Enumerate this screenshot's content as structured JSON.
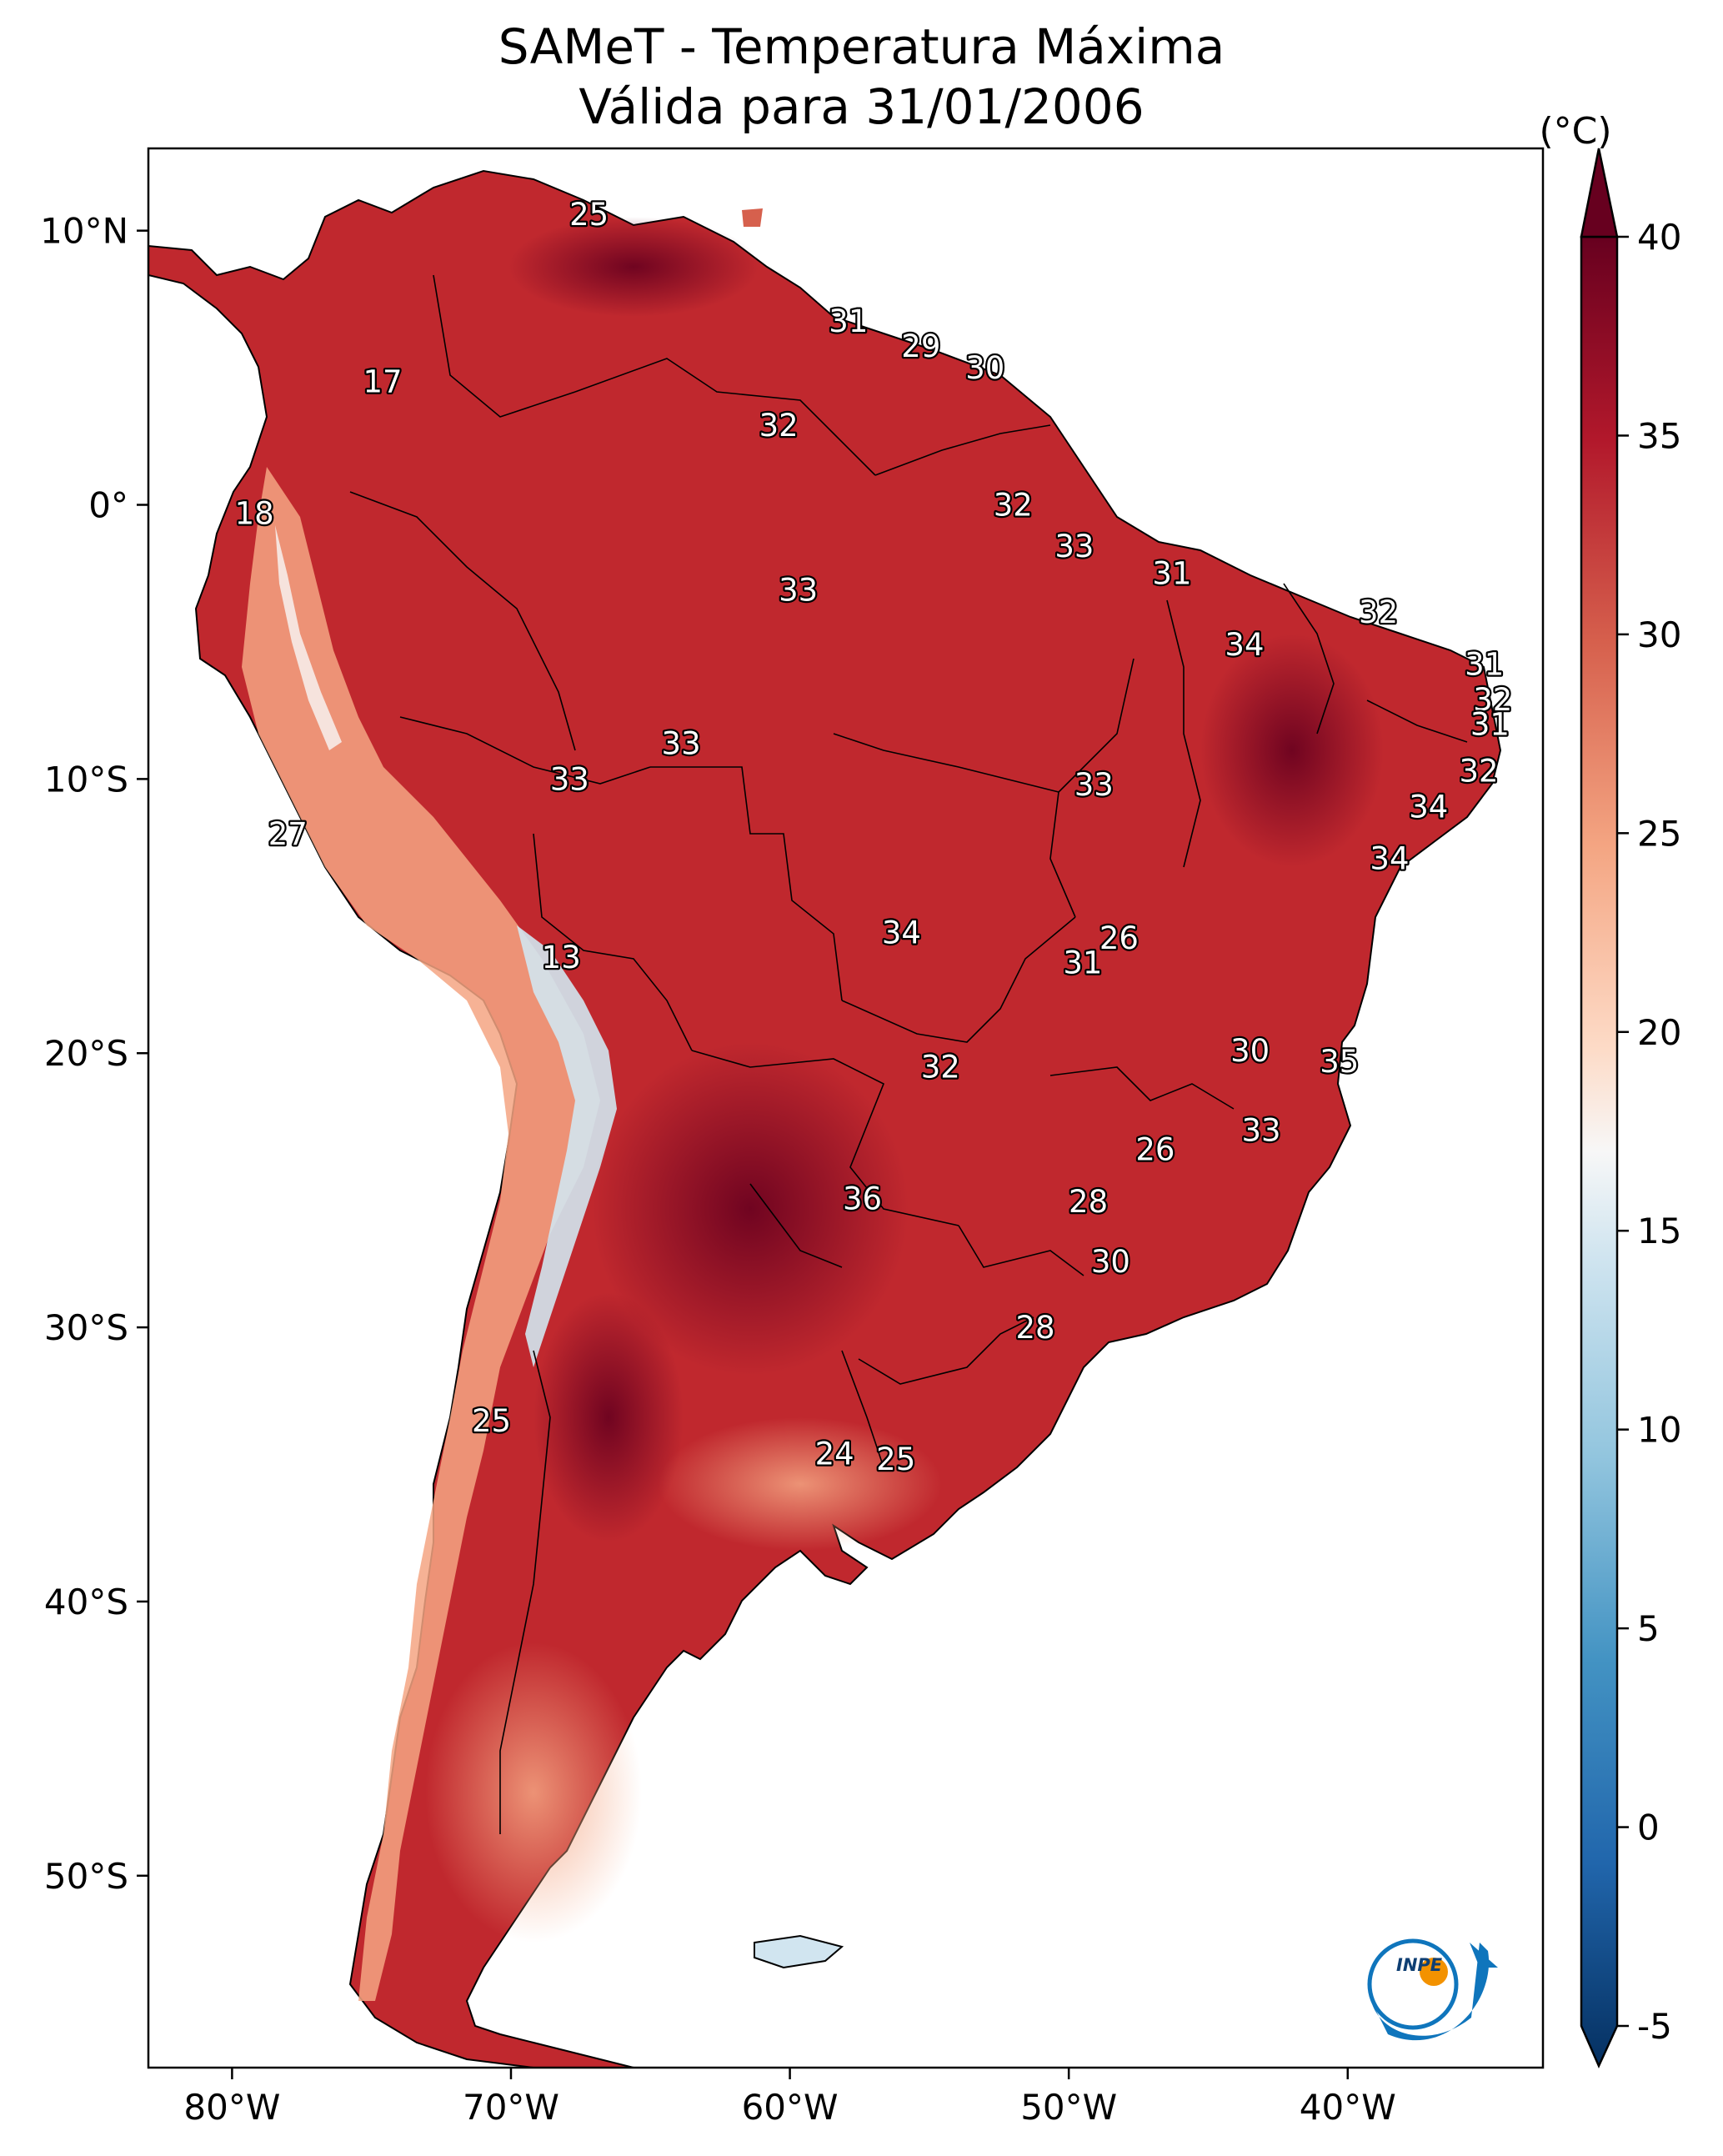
{
  "title": "SAMeT - Temperatura Máxima",
  "subtitle": "Válida para 31/01/2006",
  "map": {
    "lon_range": [
      -83,
      -33
    ],
    "lat_range": [
      -57,
      13
    ],
    "x_ticks": [
      {
        "lon": -80,
        "label": "80°W"
      },
      {
        "lon": -70,
        "label": "70°W"
      },
      {
        "lon": -60,
        "label": "60°W"
      },
      {
        "lon": -50,
        "label": "50°W"
      },
      {
        "lon": -40,
        "label": "40°W"
      }
    ],
    "y_ticks": [
      {
        "lat": 10,
        "label": "10°N"
      },
      {
        "lat": 0,
        "label": "0°"
      },
      {
        "lat": -10,
        "label": "10°S"
      },
      {
        "lat": -20,
        "label": "20°S"
      },
      {
        "lat": -30,
        "label": "30°S"
      },
      {
        "lat": -40,
        "label": "40°S"
      },
      {
        "lat": -50,
        "label": "50°S"
      }
    ],
    "station_labels": [
      {
        "lon": -67.2,
        "lat": 10.6,
        "value": "25"
      },
      {
        "lon": -57.9,
        "lat": 6.7,
        "value": "31"
      },
      {
        "lon": -55.3,
        "lat": 5.8,
        "value": "29"
      },
      {
        "lon": -53.0,
        "lat": 5.0,
        "value": "30"
      },
      {
        "lon": -74.6,
        "lat": 4.5,
        "value": "17"
      },
      {
        "lon": -60.4,
        "lat": 2.9,
        "value": "32"
      },
      {
        "lon": -79.2,
        "lat": -0.3,
        "value": "18"
      },
      {
        "lon": -52.0,
        "lat": 0.0,
        "value": "32"
      },
      {
        "lon": -49.8,
        "lat": -1.5,
        "value": "33"
      },
      {
        "lon": -59.7,
        "lat": -3.1,
        "value": "33"
      },
      {
        "lon": -46.3,
        "lat": -2.5,
        "value": "31"
      },
      {
        "lon": -38.9,
        "lat": -3.9,
        "value": "32"
      },
      {
        "lon": -43.7,
        "lat": -5.1,
        "value": "34"
      },
      {
        "lon": -35.1,
        "lat": -5.8,
        "value": "31"
      },
      {
        "lon": -34.8,
        "lat": -7.1,
        "value": "32"
      },
      {
        "lon": -34.9,
        "lat": -8.0,
        "value": "31"
      },
      {
        "lon": -63.9,
        "lat": -8.7,
        "value": "33"
      },
      {
        "lon": -35.3,
        "lat": -9.7,
        "value": "32"
      },
      {
        "lon": -67.9,
        "lat": -10.0,
        "value": "33"
      },
      {
        "lon": -49.1,
        "lat": -10.2,
        "value": "33"
      },
      {
        "lon": -37.1,
        "lat": -11.0,
        "value": "34"
      },
      {
        "lon": -78.0,
        "lat": -12.0,
        "value": "27"
      },
      {
        "lon": -38.5,
        "lat": -12.9,
        "value": "34"
      },
      {
        "lon": -48.2,
        "lat": -15.8,
        "value": "26"
      },
      {
        "lon": -56.0,
        "lat": -15.6,
        "value": "34"
      },
      {
        "lon": -49.5,
        "lat": -16.7,
        "value": "31"
      },
      {
        "lon": -68.2,
        "lat": -16.5,
        "value": "13"
      },
      {
        "lon": -43.5,
        "lat": -19.9,
        "value": "30"
      },
      {
        "lon": -40.3,
        "lat": -20.3,
        "value": "35"
      },
      {
        "lon": -54.6,
        "lat": -20.5,
        "value": "32"
      },
      {
        "lon": -43.1,
        "lat": -22.8,
        "value": "33"
      },
      {
        "lon": -46.9,
        "lat": -23.5,
        "value": "26"
      },
      {
        "lon": -57.4,
        "lat": -25.3,
        "value": "36"
      },
      {
        "lon": -49.3,
        "lat": -25.4,
        "value": "28"
      },
      {
        "lon": -48.5,
        "lat": -27.6,
        "value": "30"
      },
      {
        "lon": -51.2,
        "lat": -30.0,
        "value": "28"
      },
      {
        "lon": -70.7,
        "lat": -33.4,
        "value": "25"
      },
      {
        "lon": -58.4,
        "lat": -34.6,
        "value": "24"
      },
      {
        "lon": -56.2,
        "lat": -34.8,
        "value": "25"
      }
    ]
  },
  "colorbar": {
    "unit": "(°C)",
    "range": [
      -5,
      40
    ],
    "ticks": [
      "-5",
      "0",
      "5",
      "10",
      "15",
      "20",
      "25",
      "30",
      "35",
      "40"
    ],
    "colors": {
      "neg5": "#053061",
      "0": "#2166ac",
      "5": "#4393c3",
      "10": "#92c5de",
      "15": "#d1e5f0",
      "17.5": "#f7f7f7",
      "20": "#fddbc7",
      "25": "#f4a582",
      "30": "#d6604d",
      "35": "#b2182b",
      "40": "#67001f"
    }
  },
  "logo": {
    "text": "INPE"
  }
}
